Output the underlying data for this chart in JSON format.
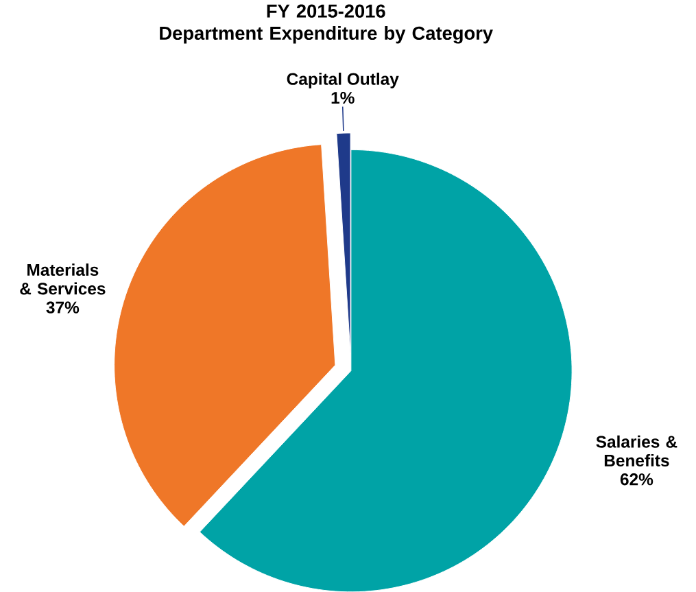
{
  "chart_data": {
    "type": "pie",
    "title": "FY 2015-2016\nDepartment Expenditure by Category",
    "categories": [
      "Salaries & Benefits",
      "Materials & Services",
      "Capital Outlay"
    ],
    "values": [
      62,
      37,
      1
    ],
    "value_labels": [
      "62%",
      "37%",
      "1%"
    ],
    "colors": [
      "#00a3a6",
      "#ef7728",
      "#1f3a8a"
    ]
  }
}
